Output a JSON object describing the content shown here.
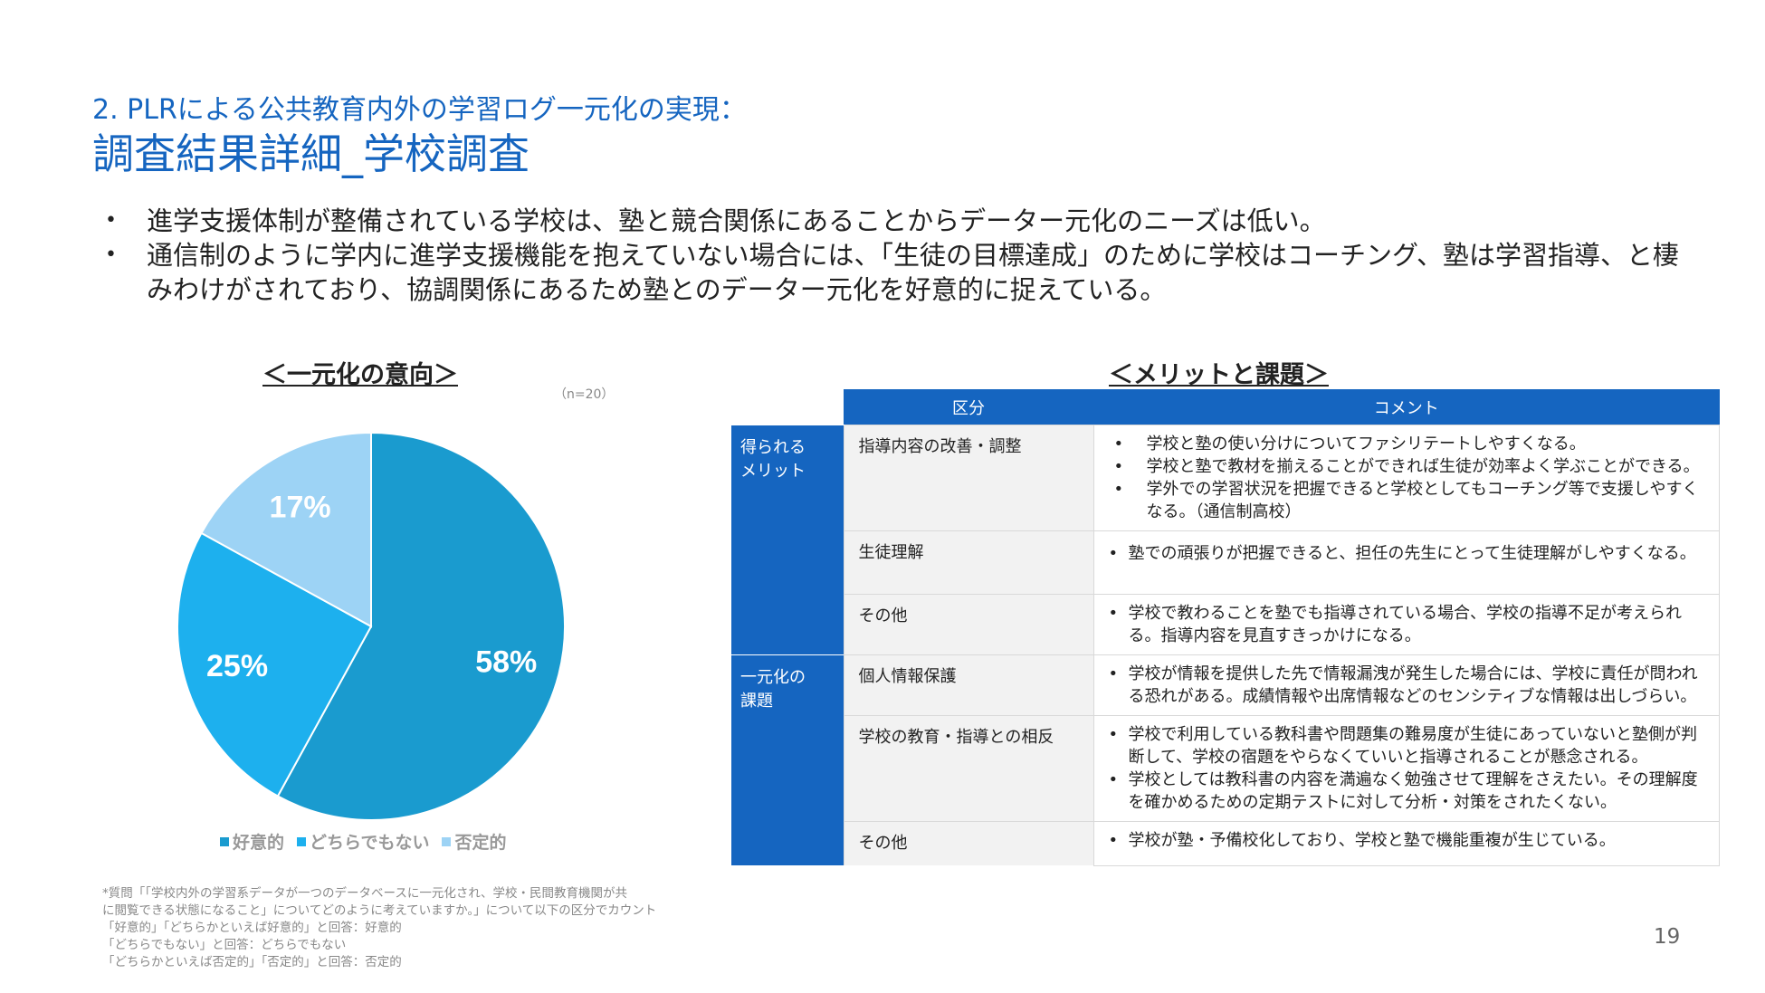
{
  "header": {
    "subtitle": "2. PLRによる公共教育内外の学習ログ一元化の実現：",
    "title": "調査結果詳細_学校調査"
  },
  "bullets": [
    "進学支援体制が整備されている学校は、塾と競合関係にあることからデーター元化のニーズは低い。",
    "通信制のように学内に進学支援機能を抱えていない場合には、「生徒の目標達成」のために学校はコーチング、塾は学習指導、と棲みわけがされており、協調関係にあるため塾とのデーター元化を好意的に捉えている。"
  ],
  "left_section": {
    "title": "＜一元化の意向＞",
    "n_note": "（n=20）"
  },
  "right_section": {
    "title": "＜メリットと課題＞"
  },
  "chart_data": {
    "type": "pie",
    "categories": [
      "好意的",
      "どちらでもない",
      "否定的"
    ],
    "values": [
      58,
      25,
      17
    ],
    "labels": [
      "58%",
      "25%",
      "17%"
    ],
    "colors": [
      "#1A9BCF",
      "#1DB0EE",
      "#9DD3F5"
    ],
    "legend_position": "bottom"
  },
  "table": {
    "headers": [
      "区分",
      "コメント"
    ],
    "categories": [
      {
        "label": "得られるメリット",
        "rows": [
          {
            "sub": "指導内容の改善・調整",
            "comments": [
              "学校と塾の使い分けについてファシリテートしやすくなる。",
              "学校と塾で教材を揃えることができれば生徒が効率よく学ぶことができる。",
              "学外での学習状況を把握できると学校としてもコーチング等で支援しやすくなる。（通信制高校）"
            ]
          },
          {
            "sub": "生徒理解",
            "comments": [
              "塾での頑張りが把握できると、担任の先生にとって生徒理解がしやすくなる。"
            ]
          },
          {
            "sub": "その他",
            "comments": [
              "学校で教わることを塾でも指導されている場合、学校の指導不足が考えられる。指導内容を見直すきっかけになる。"
            ]
          }
        ]
      },
      {
        "label": "一元化の課題",
        "rows": [
          {
            "sub": "個人情報保護",
            "comments": [
              "学校が情報を提供した先で情報漏洩が発生した場合には、学校に責任が問われる恐れがある。成績情報や出席情報などのセンシティブな情報は出しづらい。"
            ]
          },
          {
            "sub": "学校の教育・指導との相反",
            "comments": [
              "学校で利用している教科書や問題集の難易度が生徒にあっていないと塾側が判断して、学校の宿題をやらなくていいと指導されることが懸念される。",
              "学校としては教科書の内容を満遍なく勉強させて理解をさえたい。その理解度を確かめるための定期テストに対して分析・対策をされたくない。"
            ]
          },
          {
            "sub": "その他",
            "comments": [
              "学校が塾・予備校化しており、学校と塾で機能重複が生じている。"
            ]
          }
        ]
      }
    ]
  },
  "footnote": [
    "*質問「「学校内外の学習系データが一つのデータベースに一元化され、学校・民間教育機関が共",
    "に閲覧できる状態になること」についてどのように考えていますか。」について以下の区分でカウント",
    "「好意的」「どちらかといえば好意的」と回答：好意的",
    "「どちらでもない」と回答：どちらでもない",
    "「どちらかといえば否定的」「否定的」と回答：否定的"
  ],
  "page_number": "19"
}
